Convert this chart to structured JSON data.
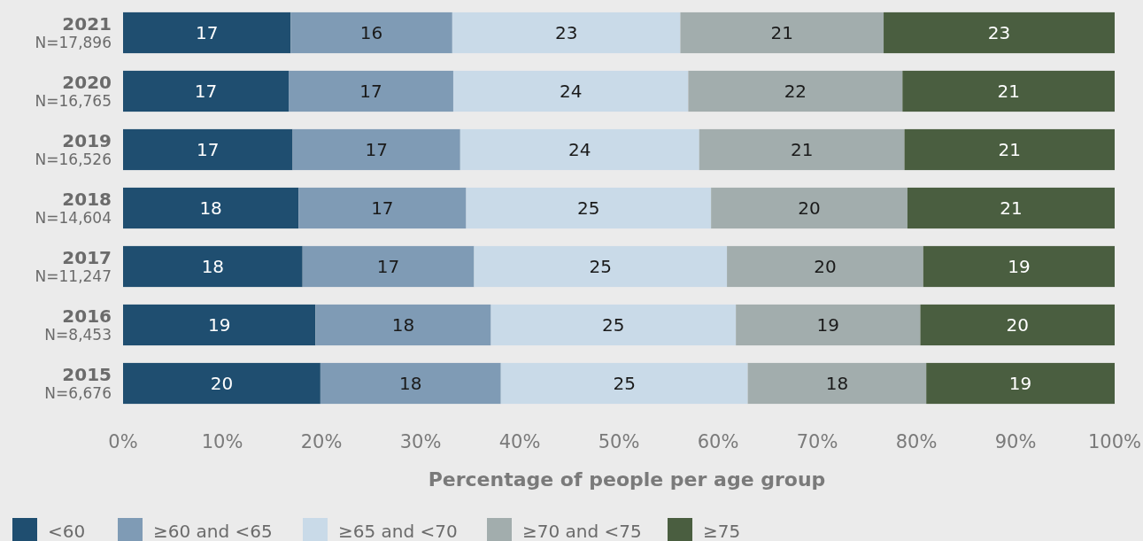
{
  "chart_data": {
    "type": "bar",
    "orientation": "horizontal",
    "stacked": true,
    "xlabel": "Percentage of people per age group",
    "categories": [
      "2021\nN=17,896",
      "2020\nN=16,765",
      "2019\nN=16,526",
      "2018\nN=14,604",
      "2017\nN=11,247",
      "2016\nN=8,453",
      "2015\nN=6,676"
    ],
    "series": [
      {
        "name": "<60",
        "color": "#1f4e70",
        "values": [
          16.9,
          16.7,
          17.1,
          17.7,
          18.1,
          19.4,
          19.9
        ],
        "value_labels": [
          "17",
          "17",
          "17",
          "18",
          "18",
          "19",
          "20"
        ]
      },
      {
        "name": "≥60 and <65",
        "color": "#7f9bb5",
        "values": [
          16.3,
          16.6,
          16.9,
          16.9,
          17.3,
          17.7,
          18.2
        ],
        "value_labels": [
          "16",
          "17",
          "17",
          "17",
          "17",
          "18",
          "18"
        ]
      },
      {
        "name": "≥65 and <70",
        "color": "#c9dae8",
        "values": [
          23.0,
          23.7,
          24.1,
          24.7,
          25.5,
          24.7,
          24.9
        ],
        "value_labels": [
          "23",
          "24",
          "24",
          "25",
          "25",
          "25",
          "25"
        ]
      },
      {
        "name": "≥70 and <75",
        "color": "#a2adad",
        "values": [
          20.5,
          21.6,
          20.7,
          19.8,
          19.8,
          18.6,
          18.0
        ],
        "value_labels": [
          "21",
          "22",
          "21",
          "20",
          "20",
          "19",
          "18"
        ]
      },
      {
        "name": "≥75",
        "color": "#4a5e40",
        "values": [
          23.3,
          21.4,
          21.2,
          20.9,
          19.3,
          19.6,
          19.0
        ],
        "value_labels": [
          "23",
          "21",
          "21",
          "21",
          "19",
          "20",
          "19"
        ]
      }
    ],
    "xlim": [
      0,
      100
    ],
    "xticks": [
      {
        "value": 0,
        "label": "0%"
      },
      {
        "value": 10,
        "label": "10%"
      },
      {
        "value": 20,
        "label": "20%"
      },
      {
        "value": 30,
        "label": "30%"
      },
      {
        "value": 40,
        "label": "40%"
      },
      {
        "value": 50,
        "label": "50%"
      },
      {
        "value": 60,
        "label": "60%"
      },
      {
        "value": 70,
        "label": "70%"
      },
      {
        "value": 80,
        "label": "80%"
      },
      {
        "value": 90,
        "label": "90%"
      },
      {
        "value": 100,
        "label": "100%"
      }
    ],
    "legend": "bottom"
  }
}
